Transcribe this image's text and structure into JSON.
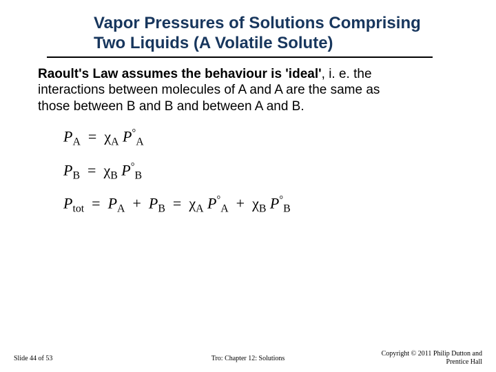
{
  "title_line1": "Vapor Pressures of Solutions Comprising",
  "title_line2": "Two Liquids (A Volatile Solute)",
  "body_bold": "Raoult's Law assumes the behaviour is 'ideal'",
  "body_rest": ", i. e. the interactions between molecules of A and A are the same as those between B and B and between A and B.",
  "eq1": {
    "lhs_var": "P",
    "lhs_sub": "A",
    "rhs_chi": "χ",
    "rhs_chi_sub": "A",
    "rhs_P": "P",
    "rhs_deg": "°",
    "rhs_P_sub": "A"
  },
  "eq2": {
    "lhs_var": "P",
    "lhs_sub": "B",
    "rhs_chi": "χ",
    "rhs_chi_sub": "B",
    "rhs_P": "P",
    "rhs_deg": "°",
    "rhs_P_sub": "B"
  },
  "eq3": {
    "lhs_var": "P",
    "lhs_sub": "tot",
    "mid1_var": "P",
    "mid1_sub": "A",
    "plus": "+",
    "mid2_var": "P",
    "mid2_sub": "B",
    "r1_chi": "χ",
    "r1_chi_sub": "A",
    "r1_P": "P",
    "r1_deg": "°",
    "r1_P_sub": "A",
    "r2_chi": "χ",
    "r2_chi_sub": "B",
    "r2_P": "P",
    "r2_deg": "°",
    "r2_P_sub": "B"
  },
  "footer_left": "Slide 44 of 53",
  "footer_center": "Tro: Chapter 12: Solutions",
  "footer_right_l1": "Copyright © 2011 Philip Dutton and",
  "footer_right_l2": "Prentice Hall",
  "colors": {
    "title": "#17365d",
    "text": "#000000",
    "underline": "#000000",
    "bg": "#ffffff"
  },
  "fonts": {
    "title_size": 24,
    "body_size": 19,
    "eq_size": 22,
    "footer_size": 10
  }
}
